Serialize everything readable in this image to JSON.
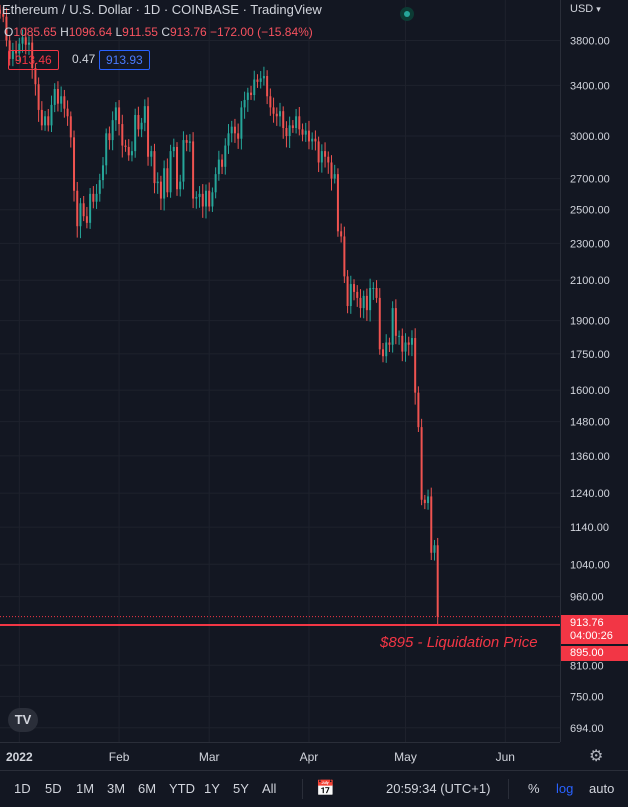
{
  "header": {
    "title": "Ethereum / U.S. Dollar · 1D · COINBASE · TradingView",
    "ohlc": {
      "open_label": "O",
      "open": "1085.65",
      "high_label": "H",
      "high": "1096.64",
      "low_label": "L",
      "low": "911.55",
      "close_label": "C",
      "close": "913.76",
      "change": "−172.00 (−15.84%)"
    },
    "bid": "913.46",
    "spread": "0.47",
    "ask": "913.93"
  },
  "price_scale": {
    "currency": "USD",
    "ticks": [
      "3800.00",
      "3400.00",
      "3000.00",
      "2700.00",
      "2500.00",
      "2300.00",
      "2100.00",
      "1900.00",
      "1750.00",
      "1600.00",
      "1480.00",
      "1360.00",
      "1240.00",
      "1140.00",
      "1040.00",
      "960.00",
      "810.00",
      "750.00",
      "694.00"
    ],
    "last_price": "913.76",
    "countdown": "04:00:26",
    "liquidation_price": "895.00"
  },
  "annotation": {
    "liquidation_text": "$895 - Liquidation Price"
  },
  "time_axis": [
    "2022",
    "Feb",
    "Mar",
    "Apr",
    "May",
    "Jun"
  ],
  "toolbar": {
    "ranges": [
      "1D",
      "5D",
      "1M",
      "3M",
      "6M",
      "YTD",
      "1Y",
      "5Y",
      "All"
    ],
    "clock": "20:59:34 (UTC+1)",
    "percent": "%",
    "log": "log",
    "auto": "auto"
  },
  "logo_text": "TV",
  "colors": {
    "up": "#26a69a",
    "down": "#ef5350",
    "background": "#131722",
    "grid": "#1e222d",
    "liquidation": "#f23645",
    "accent": "#2962ff"
  },
  "chart_data": {
    "type": "candlestick",
    "title": "Ethereum / U.S. Dollar · 1D · COINBASE",
    "scale": "log",
    "x_range": [
      "2021-12-26",
      "2022-06-18"
    ],
    "y_range": [
      670,
      4200
    ],
    "horizontal_line": {
      "label": "$895 - Liquidation Price",
      "value": 895
    },
    "close_series": {
      "start_date": "2021-12-26",
      "interval": "1D",
      "closes": [
        4060,
        4030,
        3800,
        3630,
        3710,
        3680,
        3770,
        3830,
        3760,
        3780,
        3550,
        3410,
        3200,
        3080,
        3150,
        3080,
        3240,
        3370,
        3250,
        3310,
        3210,
        3150,
        2990,
        2620,
        2400,
        2540,
        2460,
        2420,
        2600,
        2550,
        2600,
        2690,
        2790,
        3020,
        2970,
        3120,
        3220,
        3090,
        2930,
        2920,
        2860,
        2890,
        3160,
        3050,
        3100,
        3230,
        2850,
        2890,
        2670,
        2680,
        2570,
        2770,
        2610,
        2890,
        2920,
        2630,
        2680,
        2970,
        2950,
        2960,
        2570,
        2580,
        2600,
        2520,
        2620,
        2520,
        2610,
        2730,
        2830,
        2780,
        2930,
        3020,
        3070,
        3020,
        2980,
        3220,
        3280,
        3340,
        3320,
        3450,
        3430,
        3460,
        3480,
        3310,
        3220,
        3170,
        3150,
        3190,
        3060,
        3000,
        3080,
        3060,
        3150,
        3050,
        3010,
        3040,
        2960,
        2980,
        2960,
        2810,
        2890,
        2850,
        2810,
        2700,
        2730,
        2370,
        2340,
        2120,
        1970,
        2080,
        2040,
        2010,
        1960,
        2020,
        1950,
        2060,
        2060,
        2010,
        1770,
        1740,
        1800,
        1790,
        1960,
        1830,
        1830,
        1760,
        1800,
        1790,
        1820,
        1590,
        1460,
        1220,
        1210,
        1230,
        1070,
        1090,
        913.76
      ]
    }
  }
}
